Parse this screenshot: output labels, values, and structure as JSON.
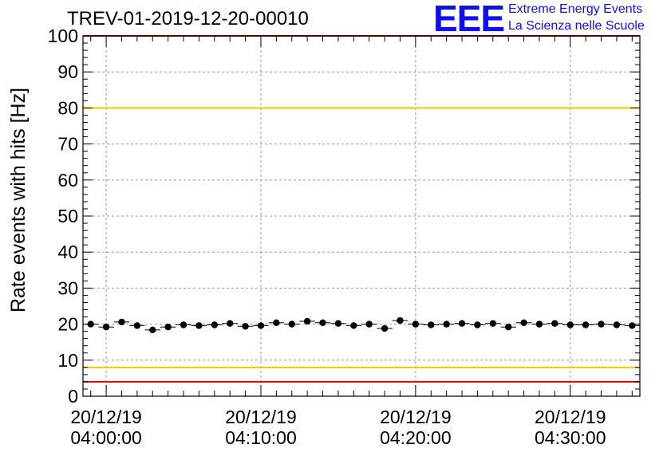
{
  "chart_data": {
    "type": "scatter",
    "title": "TREV-01-2019-12-20-00010",
    "ylabel": "Rate events with hits [Hz]",
    "xlabel": "",
    "ylim": [
      0,
      100
    ],
    "y_ticks": [
      0,
      10,
      20,
      30,
      40,
      50,
      60,
      70,
      80,
      90,
      100
    ],
    "x_range_minutes": [
      -1.5,
      34.5
    ],
    "x_ticks": [
      {
        "minute": 0,
        "date": "20/12/19",
        "time": "04:00:00"
      },
      {
        "minute": 10,
        "date": "20/12/19",
        "time": "04:10:00"
      },
      {
        "minute": 20,
        "date": "20/12/19",
        "time": "04:20:00"
      },
      {
        "minute": 30,
        "date": "20/12/19",
        "time": "04:30:00"
      }
    ],
    "reference_lines": [
      {
        "y": 80,
        "color": "#f0c800"
      },
      {
        "y": 8,
        "color": "#f0c800"
      },
      {
        "y": 4,
        "color": "#e00000"
      },
      {
        "y": 100,
        "color": "#e00000"
      }
    ],
    "grid": true,
    "series": [
      {
        "marker": "circle",
        "color": "#000000",
        "x": [
          -1.0,
          0.0,
          1.0,
          2.0,
          3.0,
          4.0,
          5.0,
          6.0,
          7.0,
          8.0,
          9.0,
          10.0,
          11.0,
          12.0,
          13.0,
          14.0,
          15.0,
          16.0,
          17.0,
          18.0,
          19.0,
          20.0,
          21.0,
          22.0,
          23.0,
          24.0,
          25.0,
          26.0,
          27.0,
          28.0,
          29.0,
          30.0,
          31.0,
          32.0,
          33.0,
          34.0
        ],
        "y": [
          20.0,
          19.2,
          20.6,
          19.6,
          18.4,
          19.2,
          19.8,
          19.6,
          19.8,
          20.2,
          19.4,
          19.6,
          20.4,
          20.0,
          20.8,
          20.4,
          20.2,
          19.6,
          20.0,
          18.8,
          21.0,
          20.0,
          19.8,
          20.0,
          20.2,
          19.8,
          20.2,
          19.2,
          20.4,
          20.0,
          20.2,
          19.8,
          19.8,
          20.0,
          19.8,
          19.6
        ],
        "y_err": [
          0.5,
          0.5,
          0.5,
          0.5,
          0.5,
          0.5,
          0.5,
          0.5,
          0.5,
          0.5,
          0.5,
          0.5,
          0.5,
          0.5,
          0.5,
          0.5,
          0.5,
          0.5,
          0.5,
          0.5,
          0.5,
          0.5,
          0.5,
          0.5,
          0.5,
          0.5,
          0.5,
          0.5,
          0.5,
          0.5,
          0.5,
          0.5,
          0.5,
          0.5,
          0.5,
          0.5
        ]
      }
    ]
  },
  "logo": {
    "mark": "EEE",
    "line1": "Extreme Energy Events",
    "line2": "La Scienza nelle Scuole"
  },
  "colors": {
    "logo": "#1010ee",
    "grid": "#999999"
  }
}
